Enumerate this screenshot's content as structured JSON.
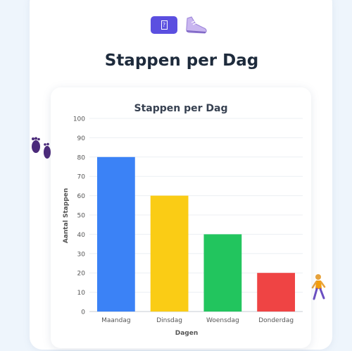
{
  "header": {
    "title": "Stappen per Dag",
    "badge_glyph": "?",
    "top_icon": "sneaker-icon"
  },
  "decorations": {
    "left": "footprints-icon",
    "right": "walking-person-icon"
  },
  "colors": {
    "page_bg": "#eef5fc",
    "title": "#1e2b3c"
  },
  "chart_data": {
    "type": "bar",
    "title": "Stappen per Dag",
    "xlabel": "Dagen",
    "ylabel": "Aantal Stappen",
    "categories": [
      "Maandag",
      "Dinsdag",
      "Woensdag",
      "Donderdag"
    ],
    "values": [
      80,
      60,
      40,
      20
    ],
    "colors": [
      "#3b82f6",
      "#facc15",
      "#22c55e",
      "#ef4444"
    ],
    "ylim": [
      0,
      100
    ],
    "yticks": [
      0,
      10,
      20,
      30,
      40,
      50,
      60,
      70,
      80,
      90,
      100
    ],
    "grid": true,
    "legend": "none"
  }
}
